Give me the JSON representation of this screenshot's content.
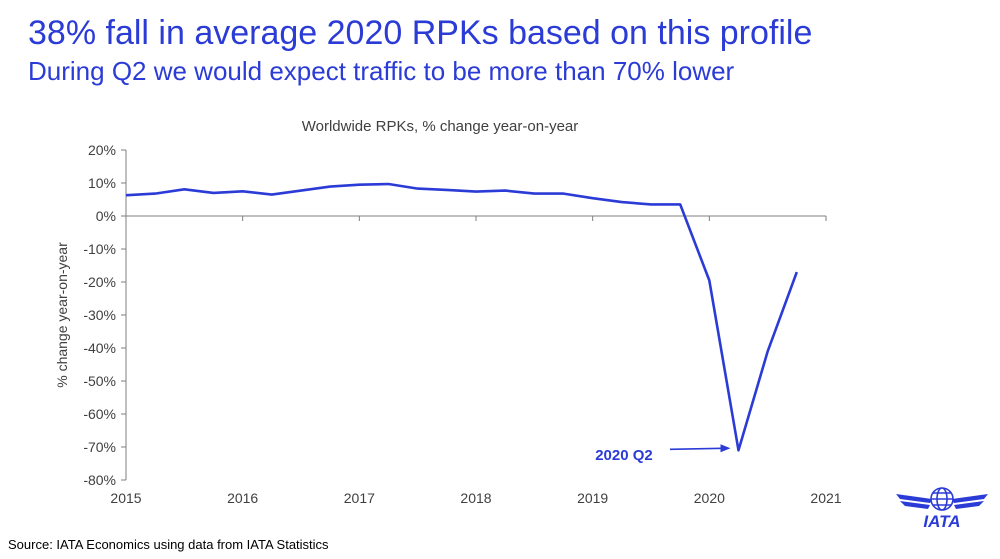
{
  "headline": "38% fall in average 2020 RPKs based on this profile",
  "subhead": "During Q2 we would expect traffic to be more than 70% lower",
  "source": "Source: IATA Economics using data from IATA Statistics",
  "logo_text": "IATA",
  "colors": {
    "accent": "#2b3bd6",
    "axis": "#7f7f7f",
    "text": "#404040"
  },
  "chart_data": {
    "type": "line",
    "title": "Worldwide RPKs, % change year-on-year",
    "ylabel": "% change year-on-year",
    "xlabel": "",
    "xlim": [
      2015,
      2021
    ],
    "ylim": [
      -80,
      20
    ],
    "x_ticks": [
      2015,
      2016,
      2017,
      2018,
      2019,
      2020,
      2021
    ],
    "y_ticks": [
      20,
      10,
      0,
      -10,
      -20,
      -30,
      -40,
      -50,
      -60,
      -70,
      -80
    ],
    "y_tick_labels": [
      "20%",
      "10%",
      "0%",
      "-10%",
      "-20%",
      "-30%",
      "-40%",
      "-50%",
      "-60%",
      "-70%",
      "-80%"
    ],
    "grid": false,
    "series": [
      {
        "x": [
          2015.0,
          2015.25,
          2015.5,
          2015.75,
          2016.0,
          2016.25,
          2016.5,
          2016.75,
          2017.0,
          2017.25,
          2017.5,
          2017.75,
          2018.0,
          2018.25,
          2018.5,
          2018.75,
          2019.0,
          2019.25,
          2019.5,
          2019.75,
          2020.0,
          2020.25,
          2020.5,
          2020.75
        ],
        "values": [
          6.3,
          6.8,
          8.1,
          7.0,
          7.5,
          6.5,
          7.7,
          8.9,
          9.5,
          9.7,
          8.3,
          7.9,
          7.4,
          7.7,
          6.8,
          6.8,
          5.4,
          4.2,
          3.5,
          3.5,
          -19.5,
          -71.0,
          -41.0,
          -17.0
        ]
      }
    ],
    "annotation": {
      "text": "2020 Q2",
      "x": 2020.25,
      "y": -71.0
    }
  }
}
